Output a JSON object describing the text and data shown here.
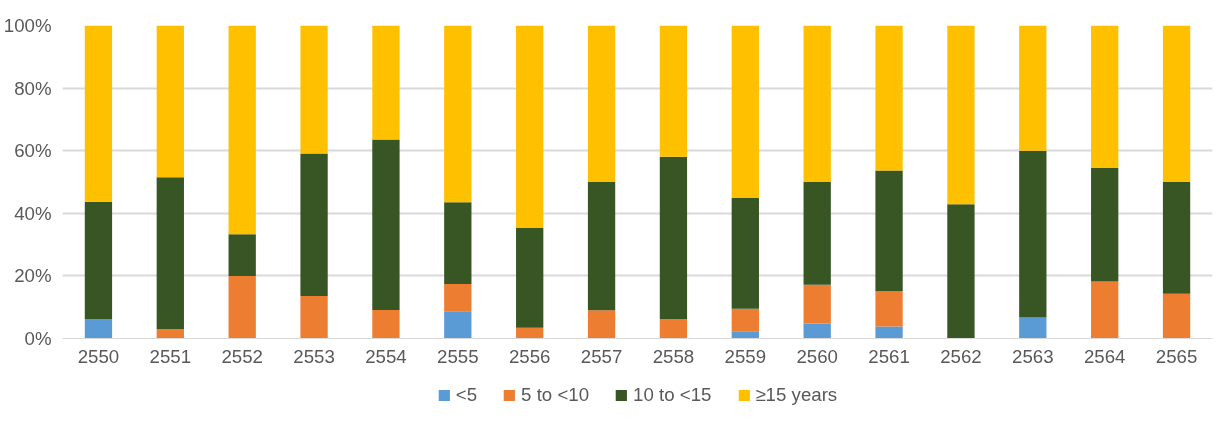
{
  "chart_data": {
    "type": "bar",
    "stacked": true,
    "categories": [
      "2550",
      "2551",
      "2552",
      "2553",
      "2554",
      "2555",
      "2556",
      "2557",
      "2558",
      "2559",
      "2560",
      "2561",
      "2562",
      "2563",
      "2564",
      "2565"
    ],
    "series": [
      {
        "name": "<5",
        "color": "#5b9bd5",
        "values": [
          6.2,
          0,
          0,
          0,
          0,
          8.7,
          0,
          0,
          0,
          2.3,
          4.8,
          3.8,
          0,
          6.7,
          0,
          0
        ]
      },
      {
        "name": "5 to <10",
        "color": "#ed7d31",
        "values": [
          0,
          3,
          20,
          13.6,
          9.1,
          8.7,
          3.4,
          9,
          6.2,
          7.2,
          12.4,
          11.3,
          0,
          0,
          18.2,
          14.3
        ]
      },
      {
        "name": "10 to <15",
        "color": "#375623",
        "values": [
          37.5,
          48.5,
          13.3,
          45.5,
          54.5,
          26.1,
          31.9,
          41,
          51.9,
          35.4,
          32.8,
          38.6,
          42.9,
          53.3,
          36.3,
          35.7
        ]
      },
      {
        "name": "≥15 years",
        "color": "#ffc000",
        "values": [
          56.3,
          48.5,
          66.7,
          40.9,
          36.4,
          56.5,
          64.7,
          50,
          41.9,
          55.1,
          50,
          46.3,
          57.1,
          40,
          45.5,
          50
        ]
      }
    ],
    "ylim": [
      0,
      100
    ],
    "yticks": [
      {
        "value": 0,
        "label": "0%"
      },
      {
        "value": 20,
        "label": "20%"
      },
      {
        "value": 40,
        "label": "40%"
      },
      {
        "value": 60,
        "label": "60%"
      },
      {
        "value": 80,
        "label": "80%"
      },
      {
        "value": 100,
        "label": "100%"
      }
    ],
    "grid": "y",
    "legend": "bottom"
  }
}
